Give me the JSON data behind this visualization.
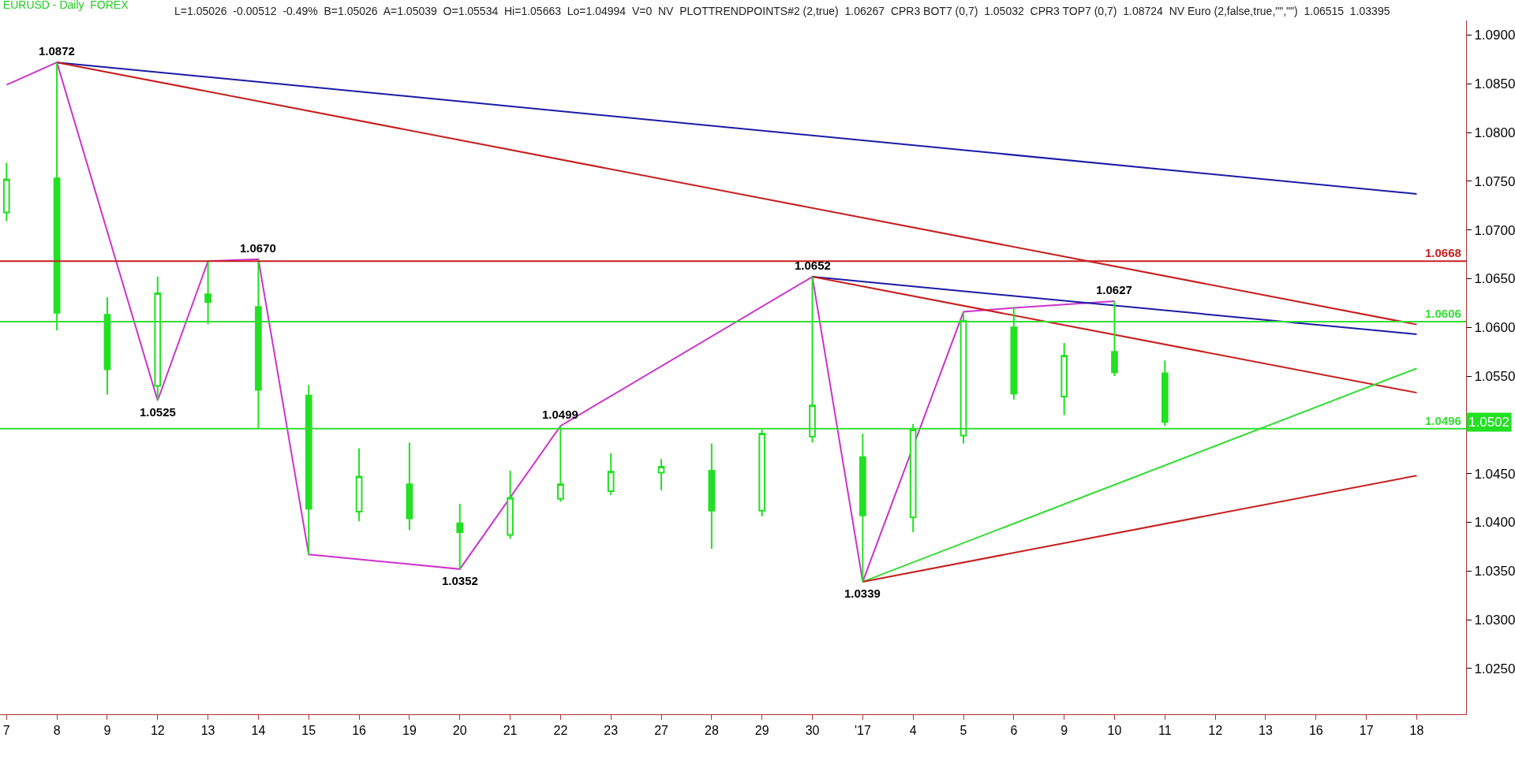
{
  "chart_data": {
    "type": "candlestick",
    "title": "EURUSD - Daily  FOREX",
    "subtitle": "L=1.05026  -0.00512  -0.49%  B=1.05026  A=1.05039  O=1.05534  Hi=1.05663  Lo=1.04994  V=0  NV  PLOTTRENDPOINTS#2 (2,true)  1.06267  CPR3 BOT7 (0,7)  1.05032  CPR3 TOP7 (0,7)  1.08724  NV Euro (2,false,true,\"\",\"\")  1.06515  1.03395",
    "categories": [
      "7",
      "8",
      "9",
      "12",
      "13",
      "14",
      "15",
      "16",
      "19",
      "20",
      "21",
      "22",
      "23",
      "27",
      "28",
      "29",
      "30",
      "'17",
      "4",
      "5",
      "6",
      "9",
      "10",
      "11",
      "12",
      "13",
      "16",
      "17",
      "18"
    ],
    "ohlc": [
      [
        1.0718,
        1.0769,
        1.0709,
        1.0752
      ],
      [
        1.0753,
        1.0872,
        1.0597,
        1.0615
      ],
      [
        1.0613,
        1.0631,
        1.0531,
        1.0557
      ],
      [
        1.054,
        1.0652,
        1.0525,
        1.0635
      ],
      [
        1.0634,
        1.0669,
        1.0603,
        1.0626
      ],
      [
        1.0621,
        1.067,
        1.0496,
        1.0536
      ],
      [
        1.053,
        1.0541,
        1.0367,
        1.0414
      ],
      [
        1.0411,
        1.0476,
        1.0401,
        1.0447
      ],
      [
        1.0439,
        1.0482,
        1.0392,
        1.0404
      ],
      [
        1.0399,
        1.0419,
        1.0352,
        1.039
      ],
      [
        1.0387,
        1.0453,
        1.0383,
        1.0425
      ],
      [
        1.0424,
        1.0499,
        1.0421,
        1.0439
      ],
      [
        1.0432,
        1.0471,
        1.0428,
        1.0452
      ],
      [
        1.0451,
        1.0465,
        1.0433,
        1.0457
      ],
      [
        1.0453,
        1.0481,
        1.0373,
        1.0412
      ],
      [
        1.0412,
        1.0495,
        1.0406,
        1.0491
      ],
      [
        1.0488,
        1.0652,
        1.0482,
        1.052
      ],
      [
        1.0467,
        1.0491,
        1.0339,
        1.0407
      ],
      [
        1.0405,
        1.0501,
        1.039,
        1.0495
      ],
      [
        1.0489,
        1.0616,
        1.0481,
        1.0607
      ],
      [
        1.06,
        1.0621,
        1.0526,
        1.0532
      ],
      [
        1.0529,
        1.0584,
        1.051,
        1.0571
      ],
      [
        1.0575,
        1.0627,
        1.055,
        1.0554
      ],
      [
        1.0553,
        1.0566,
        1.0499,
        1.0503
      ],
      null,
      null,
      null,
      null,
      null
    ],
    "color": "#22e022",
    "series": [
      {
        "type": "line",
        "color": "#cc33cc",
        "values": [
          1.0849,
          1.0872,
          null,
          1.0525,
          1.0668,
          1.067,
          1.0367,
          null,
          null,
          1.0352,
          null,
          1.0499,
          null,
          null,
          null,
          null,
          1.0652,
          1.0339,
          null,
          1.0616,
          1.062,
          null,
          1.0627,
          null,
          null,
          null,
          null,
          null,
          null
        ]
      },
      {
        "type": "line",
        "color": "#1a1aa6",
        "values": [
          null,
          1.0872,
          null,
          null,
          null,
          null,
          null,
          null,
          null,
          null,
          null,
          null,
          null,
          null,
          null,
          null,
          null,
          null,
          null,
          null,
          null,
          null,
          null,
          null,
          null,
          null,
          null,
          null,
          1.0737
        ]
      },
      {
        "type": "line",
        "color": "#c81e1e",
        "values": [
          null,
          1.0872,
          null,
          null,
          null,
          null,
          null,
          null,
          null,
          null,
          null,
          null,
          null,
          null,
          null,
          null,
          null,
          null,
          null,
          null,
          null,
          null,
          null,
          null,
          null,
          null,
          null,
          null,
          1.0603
        ]
      },
      {
        "type": "line",
        "color": "#1a1aa6",
        "values": [
          null,
          null,
          null,
          null,
          null,
          null,
          null,
          null,
          null,
          null,
          null,
          null,
          null,
          null,
          null,
          null,
          1.0652,
          null,
          null,
          null,
          null,
          null,
          null,
          null,
          null,
          null,
          null,
          null,
          1.0593
        ]
      },
      {
        "type": "line",
        "color": "#c81e1e",
        "values": [
          null,
          null,
          null,
          null,
          null,
          null,
          null,
          null,
          null,
          null,
          null,
          null,
          null,
          null,
          null,
          null,
          1.0652,
          null,
          null,
          null,
          null,
          null,
          null,
          null,
          null,
          null,
          null,
          null,
          1.0533
        ]
      },
      {
        "type": "line",
        "color": "#33dd33",
        "values": [
          null,
          null,
          null,
          null,
          null,
          null,
          null,
          null,
          null,
          null,
          null,
          null,
          null,
          null,
          null,
          null,
          null,
          1.0339,
          null,
          null,
          null,
          null,
          null,
          null,
          null,
          null,
          null,
          null,
          1.0558
        ]
      },
      {
        "type": "line",
        "color": "#c81e1e",
        "values": [
          null,
          null,
          null,
          null,
          null,
          null,
          null,
          null,
          null,
          null,
          null,
          null,
          null,
          null,
          null,
          null,
          null,
          1.0339,
          null,
          null,
          null,
          null,
          null,
          null,
          null,
          null,
          null,
          null,
          1.0448
        ]
      }
    ],
    "ref_lines": [
      {
        "axis": "y",
        "value": 1.0668,
        "label": "1.0668",
        "color": "#c81e1e"
      },
      {
        "axis": "y",
        "value": 1.0606,
        "label": "1.0606",
        "color": "#33dd33"
      },
      {
        "axis": "y",
        "value": 1.0496,
        "label": "1.0496",
        "color": "#33dd33"
      }
    ],
    "annotations": [
      {
        "text": "1.0872",
        "x": "8",
        "y": 1.0872
      },
      {
        "text": "1.0525",
        "x": "12",
        "y": 1.0525
      },
      {
        "text": "1.0670",
        "x": "14",
        "y": 1.067
      },
      {
        "text": "1.0352",
        "x": "20",
        "y": 1.0352
      },
      {
        "text": "1.0499",
        "x": "22",
        "y": 1.0499
      },
      {
        "text": "1.0652",
        "x": "30",
        "y": 1.0652
      },
      {
        "text": "1.0339",
        "x": "'17",
        "y": 1.0339
      },
      {
        "text": "1.0627",
        "x": "10",
        "y": 1.0627
      },
      "1.0502"
    ],
    "ylim": [
      1.0203,
      1.0915
    ],
    "yticks": [
      {
        "value": 1.025,
        "label": "1.0250"
      },
      {
        "value": 1.03,
        "label": "1.0300"
      },
      {
        "value": 1.035,
        "label": "1.0350"
      },
      {
        "value": 1.04,
        "label": "1.0400"
      },
      {
        "value": 1.045,
        "label": "1.0450"
      },
      {
        "value": 1.05,
        "label": null
      },
      {
        "value": 1.055,
        "label": "1.0550"
      },
      {
        "value": 1.06,
        "label": "1.0600"
      },
      {
        "value": 1.065,
        "label": "1.0650"
      },
      {
        "value": 1.07,
        "label": "1.0700"
      },
      {
        "value": 1.075,
        "label": "1.0750"
      },
      {
        "value": 1.08,
        "label": "1.0800"
      },
      {
        "value": 1.085,
        "label": "1.0850"
      },
      {
        "value": 1.09,
        "label": "1.0900"
      }
    ]
  }
}
